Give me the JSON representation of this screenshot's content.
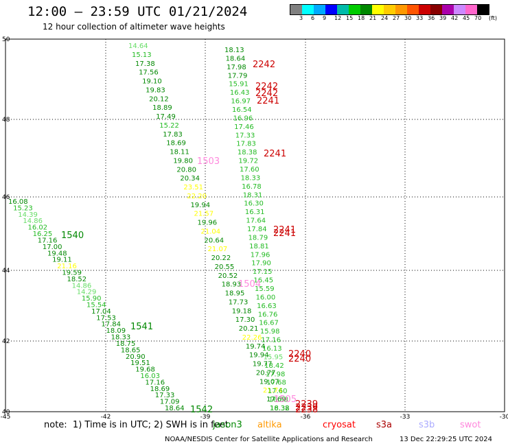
{
  "title": "12:00 — 23:59 UTC 01/21/2024",
  "subtitle": "12 hour collection of altimeter wave heights",
  "legend": {
    "unit": "(ft)",
    "colors": [
      "#808080",
      "#00ffff",
      "#00aaff",
      "#0000ff",
      "#00bbaa",
      "#00cc00",
      "#008800",
      "#ffff00",
      "#ffcc00",
      "#ff9900",
      "#ff5500",
      "#cc0000",
      "#880000",
      "#aa00aa",
      "#cc88ff",
      "#ff66cc",
      "#000000"
    ],
    "labels": [
      "3",
      "6",
      "9",
      "12",
      "15",
      "18",
      "21",
      "24",
      "27",
      "30",
      "33",
      "36",
      "39",
      "42",
      "45",
      "70"
    ]
  },
  "axes": {
    "x_ticks": [
      "-45",
      "-42",
      "-39",
      "-36",
      "-33",
      "-30"
    ],
    "y_ticks": [
      "50",
      "48",
      "46",
      "44",
      "42",
      "40"
    ]
  },
  "note": "note:  1) Time is in UTC; 2) SWH is in feet",
  "satellites": [
    {
      "name": "jason3",
      "color": "#008800"
    },
    {
      "name": "altika",
      "color": "#ff9900"
    },
    {
      "name": "cryosat",
      "color": "#ff0000"
    },
    {
      "name": "s3a",
      "color": "#aa0000"
    },
    {
      "name": "s3b",
      "color": "#aaaaff"
    },
    {
      "name": "swot",
      "color": "#ff88dd"
    }
  ],
  "footer_left": "NOAA/NESDIS Center for Satellite Applications and Research",
  "footer_right": "13 Dec 22:29:25 UTC 2024",
  "track_a": [
    [
      "14.64",
      "#66dd66"
    ],
    [
      "15.13",
      "#22bb22"
    ],
    [
      "17.38",
      "#008800"
    ],
    [
      "17.56",
      "#008800"
    ],
    [
      "19.10",
      "#008800"
    ],
    [
      "19.83",
      "#008800"
    ],
    [
      "20.12",
      "#008800"
    ],
    [
      "18.89",
      "#008800"
    ],
    [
      "17.49",
      "#008800"
    ],
    [
      "15.22",
      "#22bb22"
    ],
    [
      "17.83",
      "#008800"
    ],
    [
      "18.69",
      "#008800"
    ],
    [
      "18.11",
      "#008800"
    ],
    [
      "19.80",
      "#008800"
    ],
    [
      "20.80",
      "#008800"
    ],
    [
      "20.34",
      "#008800"
    ],
    [
      "23.51",
      "#ffff00"
    ],
    [
      "22.20",
      "#ffff00"
    ],
    [
      "19.94",
      "#008800"
    ],
    [
      "21.57",
      "#ffff00"
    ],
    [
      "19.96",
      "#008800"
    ],
    [
      "21.04",
      "#ffff00"
    ],
    [
      "20.64",
      "#008800"
    ],
    [
      "21.07",
      "#ffff00"
    ],
    [
      "20.22",
      "#008800"
    ],
    [
      "20.55",
      "#008800"
    ],
    [
      "20.52",
      "#008800"
    ],
    [
      "18.93",
      "#008800"
    ],
    [
      "18.95",
      "#008800"
    ],
    [
      "17.73",
      "#008800"
    ],
    [
      "19.18",
      "#008800"
    ],
    [
      "17.30",
      "#008800"
    ],
    [
      "20.21",
      "#008800"
    ],
    [
      "22.26",
      "#ffff00"
    ],
    [
      "19.74",
      "#008800"
    ],
    [
      "19.94",
      "#008800"
    ],
    [
      "19.77",
      "#008800"
    ],
    [
      "20.77",
      "#008800"
    ],
    [
      "19.07",
      "#008800"
    ],
    [
      "21.74",
      "#ffff00"
    ],
    [
      "17.69",
      "#008800"
    ],
    [
      "18.38",
      "#008800"
    ]
  ],
  "track_b": [
    [
      "18.13",
      "#008800"
    ],
    [
      "18.64",
      "#008800"
    ],
    [
      "17.98",
      "#008800"
    ],
    [
      "17.79",
      "#008800"
    ],
    [
      "15.91",
      "#22bb22"
    ],
    [
      "16.43",
      "#22bb22"
    ],
    [
      "16.97",
      "#22bb22"
    ],
    [
      "16.54",
      "#22bb22"
    ],
    [
      "16.96",
      "#22bb22"
    ],
    [
      "17.46",
      "#22bb22"
    ],
    [
      "17.33",
      "#22bb22"
    ],
    [
      "17.83",
      "#22bb22"
    ],
    [
      "18.38",
      "#22bb22"
    ],
    [
      "19.72",
      "#22bb22"
    ],
    [
      "17.60",
      "#22bb22"
    ],
    [
      "18.33",
      "#22bb22"
    ],
    [
      "16.78",
      "#22bb22"
    ],
    [
      "18.31",
      "#22bb22"
    ],
    [
      "16.30",
      "#22bb22"
    ],
    [
      "16.31",
      "#22bb22"
    ],
    [
      "17.64",
      "#22bb22"
    ],
    [
      "17.84",
      "#22bb22"
    ],
    [
      "18.79",
      "#22bb22"
    ],
    [
      "18.81",
      "#22bb22"
    ],
    [
      "17.96",
      "#22bb22"
    ],
    [
      "17.90",
      "#22bb22"
    ],
    [
      "17.15",
      "#22bb22"
    ],
    [
      "16.45",
      "#22bb22"
    ],
    [
      "15.59",
      "#22bb22"
    ],
    [
      "16.00",
      "#22bb22"
    ],
    [
      "16.63",
      "#22bb22"
    ],
    [
      "16.76",
      "#22bb22"
    ],
    [
      "16.67",
      "#22bb22"
    ],
    [
      "15.98",
      "#22bb22"
    ],
    [
      "17.16",
      "#22bb22"
    ],
    [
      "16.13",
      "#22bb22"
    ],
    [
      "15.95",
      "#66dd66"
    ],
    [
      "18.42",
      "#22bb22"
    ],
    [
      "17.98",
      "#22bb22"
    ],
    [
      "17.68",
      "#22bb22"
    ],
    [
      "17.60",
      "#22bb22"
    ],
    [
      "16.53",
      "#22bb22"
    ],
    [
      "16.32",
      "#22bb22"
    ]
  ],
  "track_c": [
    [
      "16.08",
      "#008800"
    ],
    [
      "15.23",
      "#22bb22"
    ],
    [
      "14.39",
      "#66dd66"
    ],
    [
      "14.86",
      "#66dd66"
    ],
    [
      "16.02",
      "#22bb22"
    ],
    [
      "16.25",
      "#22bb22"
    ],
    [
      "17.16",
      "#008800"
    ],
    [
      "17.00",
      "#008800"
    ],
    [
      "19.48",
      "#008800"
    ],
    [
      "19.11",
      "#008800"
    ],
    [
      "21.16",
      "#ffff00"
    ],
    [
      "19.59",
      "#008800"
    ],
    [
      "18.52",
      "#008800"
    ],
    [
      "14.86",
      "#66dd66"
    ],
    [
      "14.29",
      "#66dd66"
    ],
    [
      "15.90",
      "#22bb22"
    ],
    [
      "15.54",
      "#22bb22"
    ],
    [
      "17.04",
      "#008800"
    ],
    [
      "17.53",
      "#008800"
    ],
    [
      "17.84",
      "#008800"
    ],
    [
      "18.09",
      "#008800"
    ],
    [
      "18.33",
      "#008800"
    ],
    [
      "18.75",
      "#008800"
    ],
    [
      "18.65",
      "#008800"
    ],
    [
      "20.90",
      "#008800"
    ],
    [
      "19.51",
      "#008800"
    ],
    [
      "19.68",
      "#008800"
    ],
    [
      "16.03",
      "#22bb22"
    ],
    [
      "17.16",
      "#008800"
    ],
    [
      "18.69",
      "#008800"
    ],
    [
      "17.33",
      "#008800"
    ],
    [
      "17.09",
      "#008800"
    ],
    [
      "18.64",
      "#008800"
    ]
  ],
  "pass_labels": [
    [
      "2242",
      "#cc0000"
    ],
    [
      "2242",
      "#cc0000"
    ],
    [
      "2242",
      "#cc0000"
    ],
    [
      "2241",
      "#cc0000"
    ],
    [
      "2241",
      "#cc0000"
    ],
    [
      "2241",
      "#cc0000"
    ],
    [
      "2241",
      "#cc0000"
    ],
    [
      "1503",
      "#ff88dd"
    ],
    [
      "1540",
      "#008800"
    ],
    [
      "1504",
      "#ff88dd"
    ],
    [
      "1541",
      "#008800"
    ],
    [
      "2240",
      "#cc0000"
    ],
    [
      "2240",
      "#cc0000"
    ],
    [
      "1505",
      "#ff88dd"
    ],
    [
      "2239",
      "#cc0000"
    ],
    [
      "2239",
      "#cc0000"
    ],
    [
      "2238",
      "#cc0000"
    ],
    [
      "1542",
      "#008800"
    ]
  ]
}
